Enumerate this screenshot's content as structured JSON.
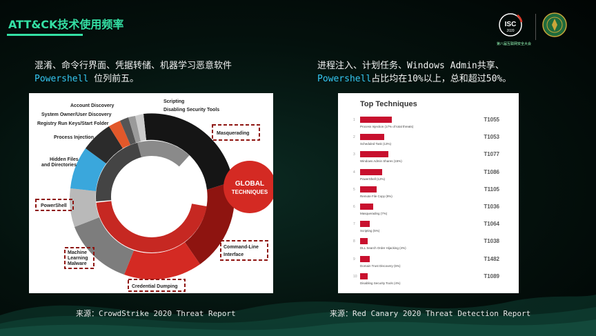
{
  "slide": {
    "title": "ATT&CK技术使用频率",
    "logo": {
      "badge_text": "ISC",
      "badge_year": "2020",
      "caption_left": "第八届互联网安全大会",
      "caption_right": ""
    },
    "left": {
      "line1": "混淆、命令行界面、凭据转储、机器学习恶意软件",
      "line2_keyword": "Powershell",
      "line2_rest": " 位列前五。",
      "source": "来源：CrowdStrike 2020 Threat Report"
    },
    "right": {
      "line1": "进程注入、计划任务、Windows Admin共享、",
      "line2_keyword": "Powershell",
      "line2_rest": "占比均在10%以上，总和超过50%。",
      "source": "来源：Red Canary 2020 Threat Detection Report"
    }
  },
  "crowdstrike_chart": {
    "center_title_1": "GLOBAL",
    "center_title_2": "TECHNIQUES",
    "labels": {
      "scripting": "Scripting",
      "disabling": "Disabling Security Tools",
      "account_discovery": "Account Discovery",
      "system_owner": "System Owner/User Discovery",
      "registry_run": "Registry Run Keys/Start Folder",
      "process_injection": "Process Injection",
      "hidden_files_1": "Hidden Files",
      "hidden_files_2": "and Directories",
      "powershell": "PowerShell",
      "ml_1": "Machine",
      "ml_2": "Learning",
      "ml_3": "Malware",
      "credential": "Credential Dumping",
      "cmd_1": "Command-Line",
      "cmd_2": "Interface",
      "masquerading": "Masquerading"
    },
    "colors": {
      "red": "#d42a23",
      "dark_red": "#8e1410",
      "black": "#151515",
      "gray": "#7d7d7d",
      "light_gray": "#b9b9b9",
      "blue": "#3aa7dc",
      "orange": "#e2582a"
    }
  },
  "chart_data": {
    "type": "bar",
    "title": "Top Techniques",
    "orientation": "horizontal",
    "categories": [
      "Process Injection (17% of total threats)",
      "Scheduled Task (13%)",
      "Windows Admin Shares (15%)",
      "PowerShell (12%)",
      "Remote File Copy (9%)",
      "Masquerading (7%)",
      "Scripting (5%)",
      "DLL Search Order Hijacking (4%)",
      "Domain Trust Discovery (5%)",
      "Disabling Security Tools (4%)"
    ],
    "values": [
      17,
      13,
      15,
      12,
      9,
      7,
      5,
      4,
      5,
      4
    ],
    "ids": [
      "T1055",
      "T1053",
      "T1077",
      "T1086",
      "T1105",
      "T1036",
      "T1064",
      "T1038",
      "T1482",
      "T1089"
    ],
    "ranks": [
      "1",
      "2",
      "3",
      "4",
      "5",
      "6",
      "7",
      "8",
      "9",
      "10"
    ],
    "bar_color": "#c8102e"
  }
}
